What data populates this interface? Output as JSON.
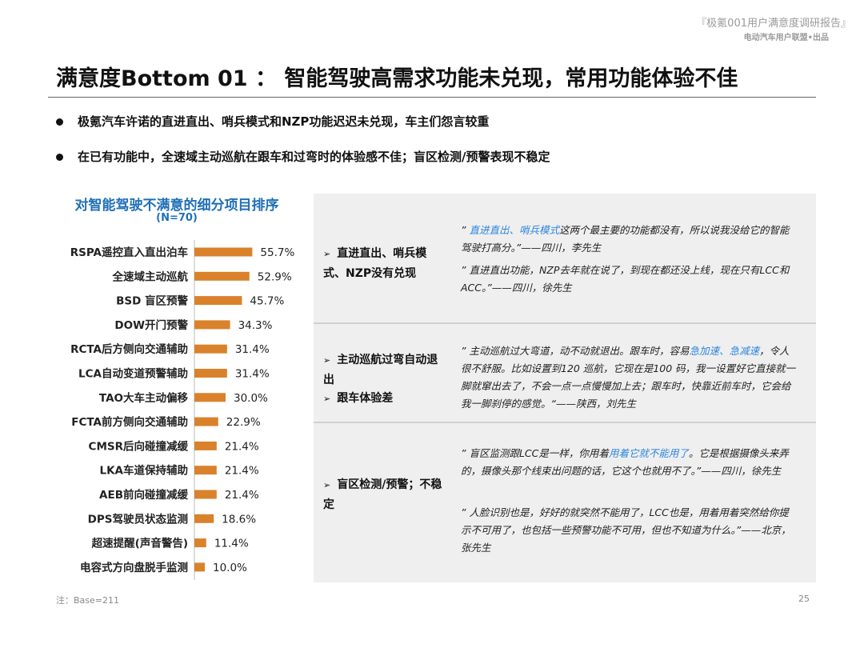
{
  "header": {
    "report": "『极氪001用户满意度调研报告』",
    "publisher": "电动汽车用户联盟•出品"
  },
  "title": "满意度Bottom 01 ： 智能驾驶高需求功能未兑现，常用功能体验不佳",
  "bullets": [
    "极氪汽车许诺的直进直出、哨兵模式和NZP功能迟迟未兑现，车主们怨言较重",
    "在已有功能中，全速域主动巡航在跟车和过弯时的体验感不佳；盲区检测/预警表现不稳定"
  ],
  "chart_data": {
    "type": "bar",
    "orientation": "horizontal",
    "title": "对智能驾驶不满意的细分项目排序",
    "subtitle": "(N=70)",
    "categories": [
      "RSPA遥控直入直出泊车",
      "全速域主动巡航",
      "BSD 盲区预警",
      "DOW开门预警",
      "RCTA后方侧向交通辅助",
      "LCA自动变道预警辅助",
      "TAO大车主动偏移",
      "FCTA前方侧向交通辅助",
      "CMSR后向碰撞减缓",
      "LKA车道保持辅助",
      "AEB前向碰撞减缓",
      "DPS驾驶员状态监测",
      "超速提醒(声音警告)",
      "电容式方向盘脱手监测"
    ],
    "values": [
      55.7,
      52.9,
      45.7,
      34.3,
      31.4,
      31.4,
      30.0,
      22.9,
      21.4,
      21.4,
      21.4,
      18.6,
      11.4,
      10.0
    ],
    "value_labels": [
      "55.7%",
      "52.9%",
      "45.7%",
      "34.3%",
      "31.4%",
      "31.4%",
      "30.0%",
      "22.9%",
      "21.4%",
      "21.4%",
      "21.4%",
      "18.6%",
      "11.4%",
      "10.0%"
    ],
    "unit": "%",
    "bar_color": "#d9822b"
  },
  "sections": [
    {
      "labels": [
        "直进直出、哨兵模式、NZP没有兑现"
      ],
      "quotes": [
        [
          {
            "t": "” "
          },
          {
            "t": "直进直出、哨兵模式",
            "hl": true
          },
          {
            "t": "这两个最主要的功能都没有，所以说我没给它的智能驾驶打高分。”——四川，李先生"
          }
        ],
        [
          {
            "t": "” 直进直出功能，NZP去年就在说了，到现在都还没上线，现在只有LCC和ACC。”——四川，徐先生"
          }
        ]
      ]
    },
    {
      "labels": [
        "主动巡航过弯自动退出",
        "跟车体验差"
      ],
      "quotes": [
        [
          {
            "t": "” 主动巡航过大弯道，动不动就退出。跟车时，容易"
          },
          {
            "t": "急加速、急减速",
            "hl": true
          },
          {
            "t": "，令人很不舒服。比如设置到120 巡航，它现在是100 码，我一设置好它直接就一脚就窜出去了，不会一点一点慢慢加上去；跟车时，快靠近前车时，它会给我一脚刹停的感觉。“——陕西，刘先生"
          }
        ]
      ]
    },
    {
      "labels": [
        "盲区检测/预警；不稳定"
      ],
      "quotes": [
        [
          {
            "t": "”  盲区监测跟LCC是一样，你用着"
          },
          {
            "t": "用着它就不能用了",
            "hl": true
          },
          {
            "t": "。它是根据摄像头来弄的，摄像头那个线束出问题的话，它这个也就用不了。”——四川，徐先生"
          }
        ],
        [
          {
            "t": "” 人脸识别也是，好好的就突然不能用了，LCC也是，用着用着突然给你提示不可用了，也包括一些预警功能不可用，但也不知道为什么。”——北京，张先生"
          }
        ]
      ]
    }
  ],
  "footer": {
    "note": "注：Base=211",
    "page": "25"
  },
  "colors": {
    "accent": "#1f6fb5",
    "highlight": "#2e86de",
    "panel": "#efefef"
  }
}
